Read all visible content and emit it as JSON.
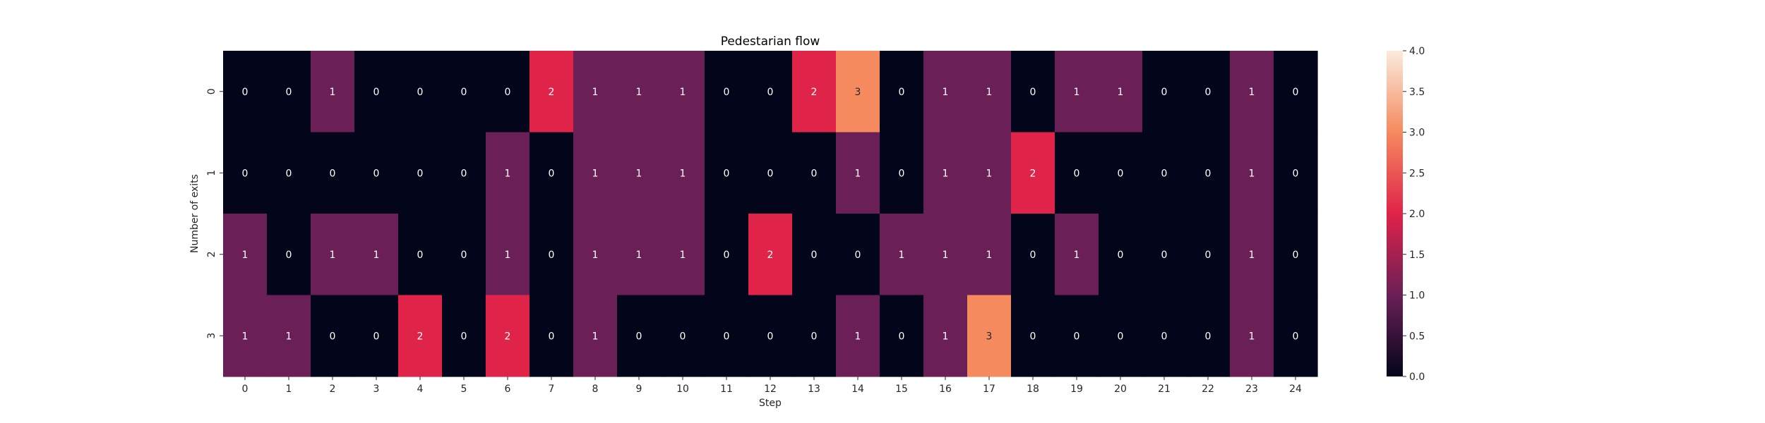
{
  "chart_data": {
    "type": "heatmap",
    "title": "Pedestarian flow",
    "xlabel": "Step",
    "ylabel": "Number of exits",
    "x_categories": [
      "0",
      "1",
      "2",
      "3",
      "4",
      "5",
      "6",
      "7",
      "8",
      "9",
      "10",
      "11",
      "12",
      "13",
      "14",
      "15",
      "16",
      "17",
      "18",
      "19",
      "20",
      "21",
      "22",
      "23",
      "24"
    ],
    "y_categories": [
      "0",
      "1",
      "2",
      "3"
    ],
    "values": [
      [
        0,
        0,
        1,
        0,
        0,
        0,
        0,
        2,
        1,
        1,
        1,
        0,
        0,
        2,
        3,
        0,
        1,
        1,
        0,
        1,
        1,
        0,
        0,
        1,
        0
      ],
      [
        0,
        0,
        0,
        0,
        0,
        0,
        1,
        0,
        1,
        1,
        1,
        0,
        0,
        0,
        1,
        0,
        1,
        1,
        2,
        0,
        0,
        0,
        0,
        1,
        0
      ],
      [
        1,
        0,
        1,
        1,
        0,
        0,
        1,
        0,
        1,
        1,
        1,
        0,
        2,
        0,
        0,
        1,
        1,
        1,
        0,
        1,
        0,
        0,
        0,
        1,
        0
      ],
      [
        1,
        1,
        0,
        0,
        2,
        0,
        2,
        0,
        1,
        0,
        0,
        0,
        0,
        0,
        1,
        0,
        1,
        3,
        0,
        0,
        0,
        0,
        0,
        1,
        0
      ]
    ],
    "colorbar": {
      "vmin": 0,
      "vmax": 4,
      "ticks": [
        "0.0",
        "0.5",
        "1.0",
        "1.5",
        "2.0",
        "2.5",
        "3.0",
        "3.5",
        "4.0"
      ],
      "colormap": "rocket"
    },
    "annotated": true,
    "grid": false
  }
}
